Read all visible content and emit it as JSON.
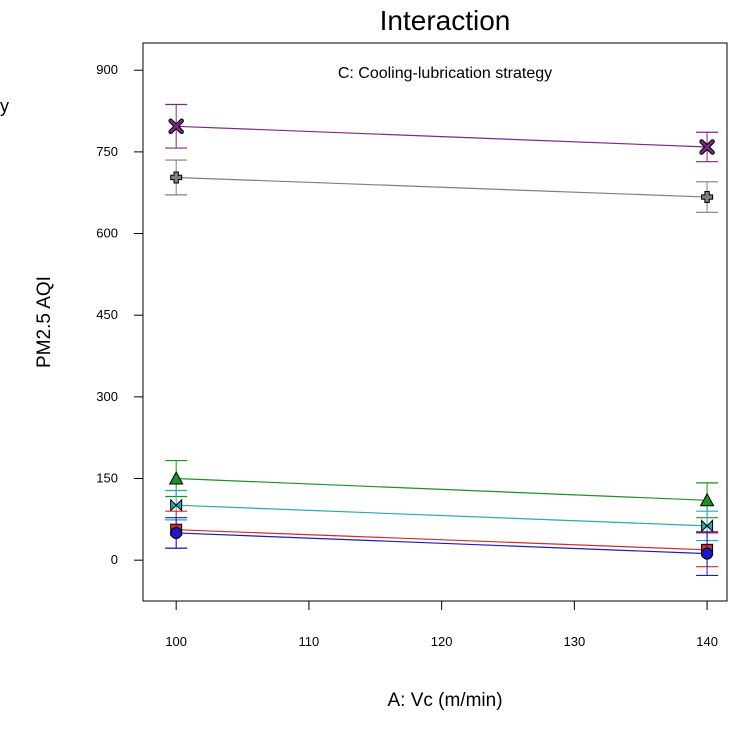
{
  "chart_data": {
    "type": "line",
    "title": "Interaction",
    "subtitle": "C: Cooling-lubrication strategy",
    "xlabel": "A: Vc (m/min)",
    "ylabel": "PM2.5 AQI",
    "left_edge_fragment": "y",
    "x_ticks": [
      "100",
      "110",
      "120",
      "130",
      "140"
    ],
    "y_ticks": [
      "0",
      "150",
      "300",
      "450",
      "600",
      "750",
      "900"
    ],
    "xlim": [
      97.5,
      141.5
    ],
    "ylim": [
      -75,
      950
    ],
    "grid": false,
    "legend": "none",
    "x": [
      100,
      140
    ],
    "series": [
      {
        "color": "#7b2a82",
        "marker": "x-cross",
        "values": [
          797,
          759
        ],
        "error": [
          40,
          27
        ]
      },
      {
        "color": "#808080",
        "marker": "plus",
        "values": [
          703,
          667
        ],
        "error": [
          32,
          28
        ]
      },
      {
        "color": "#1f8f2a",
        "marker": "triangle",
        "values": [
          150,
          110
        ],
        "error": [
          33,
          32
        ]
      },
      {
        "color": "#2aaab0",
        "marker": "bowtie",
        "values": [
          101,
          63
        ],
        "error": [
          27,
          27
        ]
      },
      {
        "color": "#d22b2b",
        "marker": "square",
        "values": [
          56,
          19
        ],
        "error": [
          34,
          31
        ]
      },
      {
        "color": "#1a1ac8",
        "marker": "circle",
        "values": [
          50,
          12
        ],
        "error": [
          28,
          40
        ]
      }
    ]
  }
}
